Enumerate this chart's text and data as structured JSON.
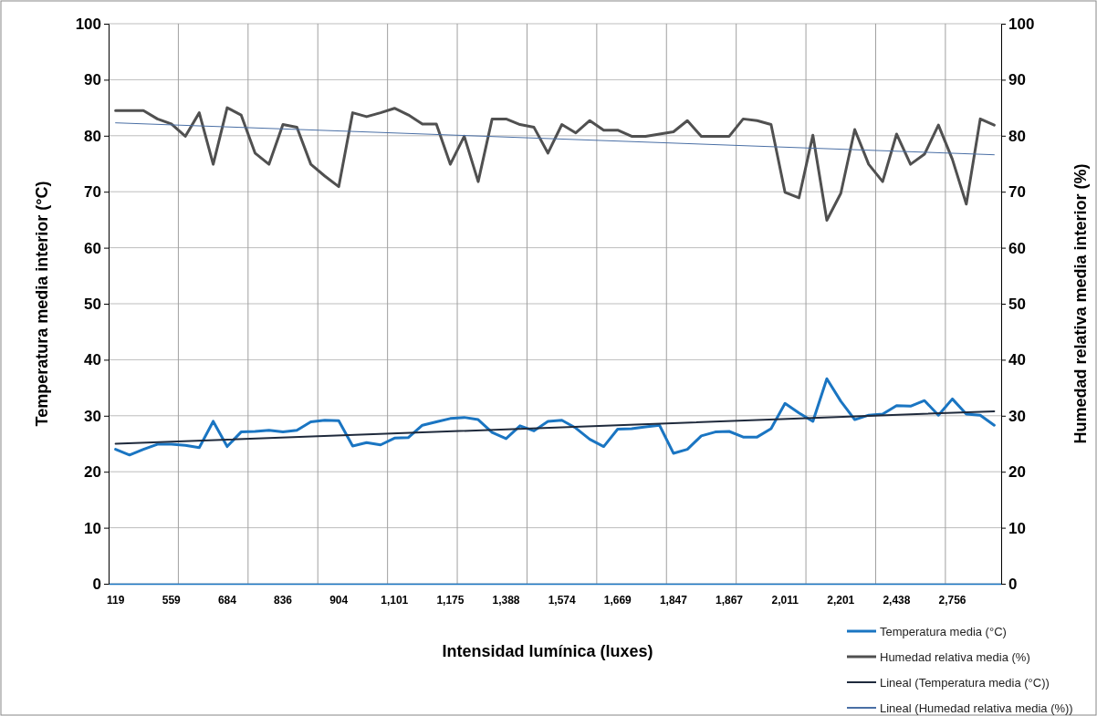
{
  "chart_data": {
    "type": "line",
    "xlabel": "Intensidad lumínica (luxes)",
    "ylabel": "Temperatura media interior (°C)",
    "y2label": "Humedad relativa media interior (%)",
    "categories": [
      "119",
      null,
      null,
      null,
      "559",
      null,
      null,
      null,
      "684",
      null,
      null,
      null,
      "836",
      null,
      null,
      null,
      "904",
      null,
      null,
      null,
      "1,101",
      null,
      null,
      null,
      "1,175",
      null,
      null,
      null,
      "1,388",
      null,
      null,
      null,
      "1,574",
      null,
      null,
      null,
      "1,669",
      null,
      null,
      null,
      "1,847",
      null,
      null,
      null,
      "1,867",
      null,
      null,
      null,
      "2,011",
      null,
      null,
      null,
      "2,201",
      null,
      null,
      null,
      "2,438",
      null,
      null,
      null,
      "2,756",
      null,
      null,
      null
    ],
    "ylim": [
      0,
      100
    ],
    "yticks": [
      0,
      10,
      20,
      30,
      40,
      50,
      60,
      70,
      80,
      90,
      100
    ],
    "y2lim": [
      0,
      100
    ],
    "y2ticks": [
      0,
      10,
      20,
      30,
      40,
      50,
      60,
      70,
      80,
      90,
      100
    ],
    "grid": true,
    "legend": "bottom right",
    "series": [
      {
        "name": "Temperatura media (°C)",
        "color": "#1a75c2",
        "values": [
          24.0,
          23.0,
          24.0,
          24.9,
          24.9,
          24.7,
          24.3,
          29.0,
          24.5,
          27.1,
          27.2,
          27.4,
          27.1,
          27.4,
          28.9,
          29.2,
          29.1,
          24.6,
          25.2,
          24.8,
          26.0,
          26.1,
          28.3,
          28.9,
          29.5,
          29.7,
          29.3,
          27.0,
          25.9,
          28.2,
          27.3,
          29.0,
          29.2,
          27.8,
          25.8,
          24.5,
          27.6,
          27.7,
          28.0,
          28.3,
          23.3,
          24.0,
          26.4,
          27.1,
          27.2,
          26.2,
          26.2,
          27.7,
          32.2,
          30.5,
          29.0,
          36.6,
          32.6,
          29.3,
          30.1,
          30.3,
          31.8,
          31.7,
          32.7,
          30.1,
          33.0,
          30.3,
          30.1,
          28.3
        ]
      },
      {
        "name": "Humedad relativa media (%)",
        "color": "#505050",
        "values": [
          84.5,
          84.5,
          84.5,
          83.0,
          82.1,
          79.9,
          84.1,
          74.9,
          85.0,
          83.7,
          76.9,
          74.9,
          82.0,
          81.5,
          74.9,
          72.8,
          70.9,
          84.1,
          83.4,
          84.1,
          84.9,
          83.7,
          82.1,
          82.1,
          74.9,
          79.9,
          71.8,
          83.0,
          83.0,
          82.0,
          81.5,
          76.9,
          82.0,
          80.5,
          82.7,
          81.0,
          81.0,
          79.9,
          79.9,
          80.3,
          80.7,
          82.7,
          79.9,
          79.9,
          79.9,
          83.0,
          82.7,
          82.0,
          69.9,
          68.9,
          80.1,
          64.9,
          69.7,
          81.1,
          74.9,
          71.8,
          80.3,
          74.9,
          76.7,
          81.9,
          75.8,
          67.8,
          83.0,
          81.9
        ]
      },
      {
        "name": "Lineal (Temperatura media (°C))",
        "color": "#1f2a3c",
        "values": [
          25.0,
          null,
          null,
          null,
          null,
          null,
          null,
          null,
          null,
          null,
          null,
          null,
          null,
          null,
          null,
          null,
          null,
          null,
          null,
          null,
          null,
          null,
          null,
          null,
          null,
          null,
          null,
          null,
          null,
          null,
          null,
          null,
          null,
          null,
          null,
          null,
          null,
          null,
          null,
          null,
          null,
          null,
          null,
          null,
          null,
          null,
          null,
          null,
          null,
          null,
          null,
          null,
          null,
          null,
          null,
          null,
          null,
          null,
          null,
          null,
          null,
          null,
          null,
          30.8
        ]
      },
      {
        "name": "Lineal (Humedad relativa media (%))",
        "color": "#4a6fa5",
        "values": [
          82.3,
          null,
          null,
          null,
          null,
          null,
          null,
          null,
          null,
          null,
          null,
          null,
          null,
          null,
          null,
          null,
          null,
          null,
          null,
          null,
          null,
          null,
          null,
          null,
          null,
          null,
          null,
          null,
          null,
          null,
          null,
          null,
          null,
          null,
          null,
          null,
          null,
          null,
          null,
          null,
          null,
          null,
          null,
          null,
          null,
          null,
          null,
          null,
          null,
          null,
          null,
          null,
          null,
          null,
          null,
          null,
          null,
          null,
          null,
          null,
          null,
          null,
          null,
          76.6
        ]
      }
    ]
  }
}
